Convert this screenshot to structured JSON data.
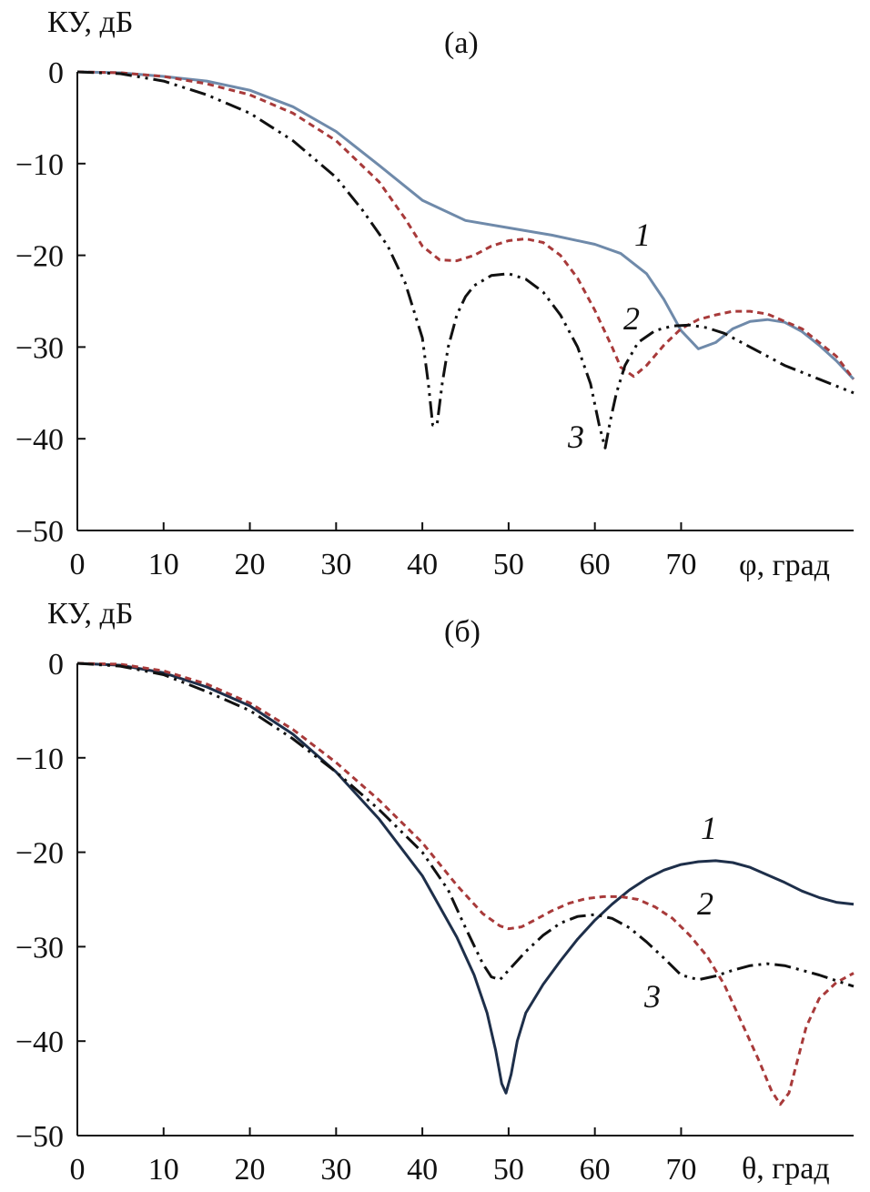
{
  "chart_data": [
    {
      "type": "line",
      "panel_label": "(а)",
      "ylabel": "КУ, дБ",
      "xlabel": "φ, град",
      "xlim": [
        0,
        90
      ],
      "ylim": [
        -50,
        0
      ],
      "xticks": [
        0,
        10,
        20,
        30,
        40,
        50,
        60,
        70
      ],
      "yticks": [
        0,
        -10,
        -20,
        -30,
        -40,
        -50
      ],
      "ytick_labels": [
        "0",
        "−10",
        "−20",
        "−30",
        "−40",
        "−50"
      ],
      "grid": false,
      "series": [
        {
          "name": "1",
          "color": "#6f8aaa",
          "dash": "solid",
          "x": [
            0,
            5,
            10,
            15,
            20,
            25,
            30,
            35,
            40,
            45,
            50,
            55,
            60,
            63,
            66,
            68,
            70,
            72,
            74,
            76,
            78,
            80,
            82,
            84,
            86,
            88,
            90
          ],
          "y": [
            0,
            -0.1,
            -0.5,
            -1.0,
            -2.0,
            -3.8,
            -6.5,
            -10.2,
            -14.0,
            -16.2,
            -17.0,
            -17.8,
            -18.8,
            -19.8,
            -22.0,
            -24.8,
            -28.2,
            -30.2,
            -29.5,
            -28.0,
            -27.2,
            -27.0,
            -27.3,
            -28.3,
            -29.8,
            -31.5,
            -33.5
          ]
        },
        {
          "name": "2",
          "color": "#a83a3a",
          "dash": "dashed",
          "x": [
            0,
            5,
            10,
            15,
            20,
            25,
            30,
            35,
            38,
            40,
            42,
            44,
            46,
            48,
            50,
            52,
            54,
            56,
            58,
            60,
            62,
            63,
            64.5,
            66,
            68,
            70,
            72,
            74,
            76,
            78,
            80,
            84,
            88,
            90
          ],
          "y": [
            0,
            -0.1,
            -0.5,
            -1.3,
            -2.5,
            -4.5,
            -7.5,
            -12.0,
            -16.0,
            -19.0,
            -20.5,
            -20.6,
            -20.0,
            -19.0,
            -18.4,
            -18.2,
            -18.6,
            -20.0,
            -22.5,
            -26.0,
            -30.0,
            -32.2,
            -33.2,
            -32.0,
            -29.8,
            -28.0,
            -27.0,
            -26.5,
            -26.1,
            -26.1,
            -26.4,
            -28.0,
            -31.0,
            -33.5
          ]
        },
        {
          "name": "3",
          "color": "#111111",
          "dash": "dashdotdot",
          "x": [
            0,
            5,
            10,
            15,
            20,
            25,
            30,
            33,
            36,
            38,
            40,
            40.7,
            41.2,
            41.7,
            42.3,
            43,
            44,
            45,
            46,
            48,
            50,
            52,
            54,
            56,
            58,
            59.5,
            60.5,
            61.2,
            61.8,
            62.5,
            63.5,
            65,
            67,
            69,
            71,
            73,
            75,
            78,
            82,
            86,
            90
          ],
          "y": [
            0,
            -0.2,
            -1.0,
            -2.5,
            -4.5,
            -7.5,
            -11.5,
            -15.0,
            -19.0,
            -23.0,
            -29.0,
            -34.0,
            -38.5,
            -38.5,
            -34.0,
            -30.0,
            -26.5,
            -24.5,
            -23.3,
            -22.2,
            -22.0,
            -22.6,
            -24.0,
            -26.5,
            -30.0,
            -34.0,
            -38.5,
            -41.0,
            -38.0,
            -35.0,
            -32.0,
            -29.5,
            -28.2,
            -27.7,
            -27.6,
            -27.9,
            -28.5,
            -30.0,
            -32.0,
            -33.5,
            -35.0
          ]
        }
      ],
      "curve_labels": [
        "1",
        "2",
        "3"
      ]
    },
    {
      "type": "line",
      "panel_label": "(б)",
      "ylabel": "КУ, дБ",
      "xlabel": "θ, град",
      "xlim": [
        0,
        90
      ],
      "ylim": [
        -50,
        0
      ],
      "xticks": [
        0,
        10,
        20,
        30,
        40,
        50,
        60,
        70
      ],
      "yticks": [
        0,
        -10,
        -20,
        -30,
        -40,
        -50
      ],
      "ytick_labels": [
        "0",
        "−10",
        "−20",
        "−30",
        "−40",
        "−50"
      ],
      "grid": false,
      "series": [
        {
          "name": "1",
          "color": "#1e2f4a",
          "dash": "solid",
          "x": [
            0,
            5,
            10,
            15,
            20,
            25,
            30,
            35,
            40,
            44,
            46,
            47.5,
            48.5,
            49.2,
            49.7,
            50.3,
            51,
            52,
            54,
            56,
            58,
            60,
            62,
            64,
            66,
            68,
            70,
            72,
            74,
            76,
            78,
            80,
            82,
            84,
            86,
            88,
            90
          ],
          "y": [
            0,
            -0.2,
            -1.0,
            -2.5,
            -4.5,
            -7.5,
            -11.5,
            -16.5,
            -22.5,
            -29.0,
            -33.0,
            -37.0,
            -41.0,
            -44.5,
            -45.5,
            -43.5,
            -40.0,
            -37.0,
            -34.0,
            -31.5,
            -29.2,
            -27.2,
            -25.5,
            -24.0,
            -22.8,
            -21.9,
            -21.3,
            -21.0,
            -20.9,
            -21.1,
            -21.6,
            -22.4,
            -23.2,
            -24.1,
            -24.8,
            -25.3,
            -25.5
          ]
        },
        {
          "name": "2",
          "color": "#a83a3a",
          "dash": "dashed",
          "x": [
            0,
            5,
            10,
            15,
            20,
            25,
            30,
            35,
            40,
            44,
            47,
            49,
            50,
            51.5,
            53,
            55,
            57,
            59,
            61,
            63,
            65,
            67,
            69,
            71,
            73,
            75,
            77,
            79,
            80.5,
            81.5,
            82.5,
            83.5,
            84.5,
            86,
            88,
            90
          ],
          "y": [
            0,
            -0.1,
            -0.8,
            -2.2,
            -4.2,
            -7.0,
            -10.5,
            -14.5,
            -19.0,
            -23.5,
            -26.5,
            -27.8,
            -28.1,
            -27.9,
            -27.2,
            -26.2,
            -25.4,
            -24.9,
            -24.7,
            -24.7,
            -25.0,
            -25.8,
            -27.0,
            -28.8,
            -31.0,
            -34.0,
            -38.0,
            -42.0,
            -45.3,
            -46.7,
            -45.5,
            -42.0,
            -38.5,
            -35.5,
            -33.8,
            -32.8
          ]
        },
        {
          "name": "3",
          "color": "#111111",
          "dash": "dashdotdot",
          "x": [
            0,
            5,
            10,
            15,
            20,
            25,
            30,
            35,
            40,
            43,
            45,
            47,
            48,
            49,
            50,
            52,
            54,
            56,
            58,
            60,
            62,
            64,
            66,
            68,
            70,
            72,
            74,
            76,
            78,
            80,
            82,
            84,
            86,
            88,
            90
          ],
          "y": [
            0,
            -0.3,
            -1.2,
            -3.0,
            -5.0,
            -8.0,
            -11.5,
            -15.5,
            -20.0,
            -24.0,
            -28.0,
            -31.8,
            -33.2,
            -33.5,
            -32.5,
            -30.5,
            -28.8,
            -27.5,
            -26.8,
            -26.6,
            -27.0,
            -28.0,
            -29.5,
            -31.2,
            -33.0,
            -33.5,
            -33.1,
            -32.5,
            -32.0,
            -31.8,
            -32.0,
            -32.5,
            -33.0,
            -33.6,
            -34.2
          ]
        }
      ],
      "curve_labels": [
        "1",
        "2",
        "3"
      ]
    }
  ]
}
